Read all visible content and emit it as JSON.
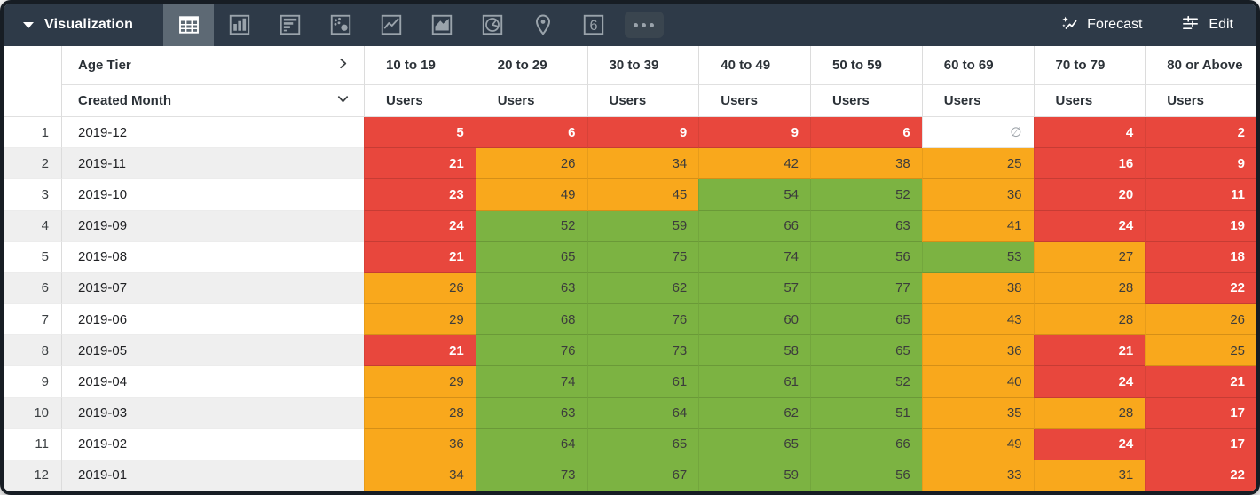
{
  "toolbar": {
    "title": "Visualization",
    "forecast_label": "Forecast",
    "edit_label": "Edit",
    "viz_types": [
      {
        "name": "table",
        "selected": true
      },
      {
        "name": "column-chart",
        "selected": false
      },
      {
        "name": "bar-chart",
        "selected": false
      },
      {
        "name": "scatter-plot",
        "selected": false
      },
      {
        "name": "line-chart",
        "selected": false
      },
      {
        "name": "area-chart",
        "selected": false
      },
      {
        "name": "pie-chart",
        "selected": false
      },
      {
        "name": "map",
        "selected": false
      },
      {
        "name": "single-value",
        "selected": false,
        "glyph": "6"
      },
      {
        "name": "more",
        "selected": false,
        "glyph": "•••"
      }
    ]
  },
  "colors": {
    "header_bg": "#2E3A48",
    "low": "#E8473D",
    "mid": "#F9A81C",
    "high": "#7CB342"
  },
  "chart_data": {
    "type": "table",
    "pivot_field": "Age Tier",
    "row_field": "Created Month",
    "measure": "Users",
    "null_symbol": "∅",
    "columns": [
      "10 to 19",
      "20 to 29",
      "30 to 39",
      "40 to 49",
      "50 to 59",
      "60 to 69",
      "70 to 79",
      "80 or Above"
    ],
    "rows": [
      {
        "num": 1,
        "month": "2019-12",
        "values": [
          5,
          6,
          9,
          9,
          6,
          null,
          4,
          2
        ],
        "cell_colors": [
          "r",
          "r",
          "r",
          "r",
          "r",
          "n",
          "r",
          "r"
        ]
      },
      {
        "num": 2,
        "month": "2019-11",
        "values": [
          21,
          26,
          34,
          42,
          38,
          25,
          16,
          9
        ],
        "cell_colors": [
          "r",
          "o",
          "o",
          "o",
          "o",
          "o",
          "r",
          "r"
        ]
      },
      {
        "num": 3,
        "month": "2019-10",
        "values": [
          23,
          49,
          45,
          54,
          52,
          36,
          20,
          11
        ],
        "cell_colors": [
          "r",
          "o",
          "o",
          "g",
          "g",
          "o",
          "r",
          "r"
        ]
      },
      {
        "num": 4,
        "month": "2019-09",
        "values": [
          24,
          52,
          59,
          66,
          63,
          41,
          24,
          19
        ],
        "cell_colors": [
          "r",
          "g",
          "g",
          "g",
          "g",
          "o",
          "r",
          "r"
        ]
      },
      {
        "num": 5,
        "month": "2019-08",
        "values": [
          21,
          65,
          75,
          74,
          56,
          53,
          27,
          18
        ],
        "cell_colors": [
          "r",
          "g",
          "g",
          "g",
          "g",
          "g",
          "o",
          "r"
        ]
      },
      {
        "num": 6,
        "month": "2019-07",
        "values": [
          26,
          63,
          62,
          57,
          77,
          38,
          28,
          22
        ],
        "cell_colors": [
          "o",
          "g",
          "g",
          "g",
          "g",
          "o",
          "o",
          "r"
        ]
      },
      {
        "num": 7,
        "month": "2019-06",
        "values": [
          29,
          68,
          76,
          60,
          65,
          43,
          28,
          26
        ],
        "cell_colors": [
          "o",
          "g",
          "g",
          "g",
          "g",
          "o",
          "o",
          "o"
        ]
      },
      {
        "num": 8,
        "month": "2019-05",
        "values": [
          21,
          76,
          73,
          58,
          65,
          36,
          21,
          25
        ],
        "cell_colors": [
          "r",
          "g",
          "g",
          "g",
          "g",
          "o",
          "r",
          "o"
        ]
      },
      {
        "num": 9,
        "month": "2019-04",
        "values": [
          29,
          74,
          61,
          61,
          52,
          40,
          24,
          21
        ],
        "cell_colors": [
          "o",
          "g",
          "g",
          "g",
          "g",
          "o",
          "r",
          "r"
        ]
      },
      {
        "num": 10,
        "month": "2019-03",
        "values": [
          28,
          63,
          64,
          62,
          51,
          35,
          28,
          17
        ],
        "cell_colors": [
          "o",
          "g",
          "g",
          "g",
          "g",
          "o",
          "o",
          "r"
        ]
      },
      {
        "num": 11,
        "month": "2019-02",
        "values": [
          36,
          64,
          65,
          65,
          66,
          49,
          24,
          17
        ],
        "cell_colors": [
          "o",
          "g",
          "g",
          "g",
          "g",
          "o",
          "r",
          "r"
        ]
      },
      {
        "num": 12,
        "month": "2019-01",
        "values": [
          34,
          73,
          67,
          59,
          56,
          33,
          31,
          22
        ],
        "cell_colors": [
          "o",
          "g",
          "g",
          "g",
          "g",
          "o",
          "o",
          "r"
        ]
      }
    ]
  }
}
